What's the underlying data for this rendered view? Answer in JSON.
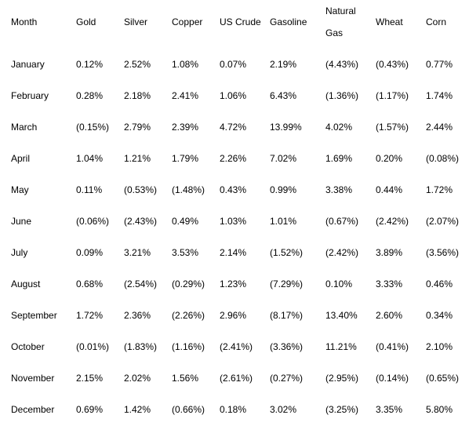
{
  "table": {
    "headers": [
      "Month",
      "Gold",
      "Silver",
      "Copper",
      "US Crude",
      "Gasoline",
      "Natural Gas",
      "Wheat",
      "Corn"
    ],
    "natural_gas_header_lines": [
      "Natural",
      "Gas"
    ],
    "rows": [
      [
        "January",
        "0.12%",
        "2.52%",
        "1.08%",
        "0.07%",
        "2.19%",
        "(4.43%)",
        "(0.43%)",
        "0.77%"
      ],
      [
        "February",
        "0.28%",
        "2.18%",
        "2.41%",
        "1.06%",
        "6.43%",
        "(1.36%)",
        "(1.17%)",
        "1.74%"
      ],
      [
        "March",
        "(0.15%)",
        "2.79%",
        "2.39%",
        "4.72%",
        "13.99%",
        "4.02%",
        "(1.57%)",
        "2.44%"
      ],
      [
        "April",
        "1.04%",
        "1.21%",
        "1.79%",
        "2.26%",
        "7.02%",
        "1.69%",
        "0.20%",
        "(0.08%)"
      ],
      [
        "May",
        "0.11%",
        "(0.53%)",
        "(1.48%)",
        "0.43%",
        "0.99%",
        "3.38%",
        "0.44%",
        "1.72%"
      ],
      [
        "June",
        "(0.06%)",
        "(2.43%)",
        "0.49%",
        "1.03%",
        "1.01%",
        "(0.67%)",
        "(2.42%)",
        "(2.07%)"
      ],
      [
        "July",
        "0.09%",
        "3.21%",
        "3.53%",
        "2.14%",
        "(1.52%)",
        "(2.42%)",
        "3.89%",
        "(3.56%)"
      ],
      [
        "August",
        "0.68%",
        "(2.54%)",
        "(0.29%)",
        "1.23%",
        "(7.29%)",
        "0.10%",
        "3.33%",
        "0.46%"
      ],
      [
        "September",
        "1.72%",
        "2.36%",
        "(2.26%)",
        "2.96%",
        "(8.17%)",
        "13.40%",
        "2.60%",
        "0.34%"
      ],
      [
        "October",
        "(0.01%)",
        "(1.83%)",
        "(1.16%)",
        "(2.41%)",
        "(3.36%)",
        "11.21%",
        "(0.41%)",
        "2.10%"
      ],
      [
        "November",
        "2.15%",
        "2.02%",
        "1.56%",
        "(2.61%)",
        "(0.27%)",
        "(2.95%)",
        "(0.14%)",
        "(0.65%)"
      ],
      [
        "December",
        "0.69%",
        "1.42%",
        "(0.66%)",
        "0.18%",
        "3.02%",
        "(3.25%)",
        "3.35%",
        "5.80%"
      ]
    ]
  }
}
